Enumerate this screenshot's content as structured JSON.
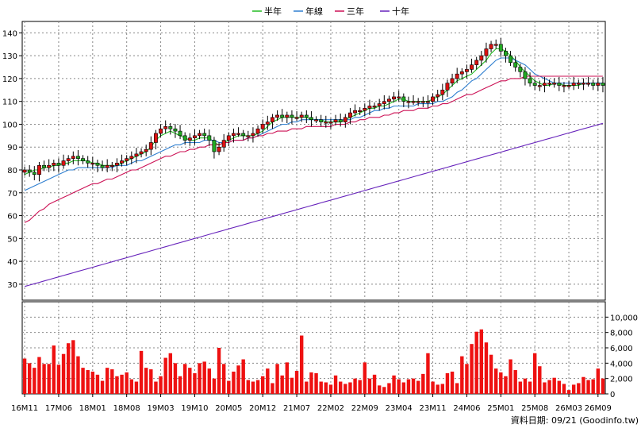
{
  "chart_data": {
    "type": "candlestick",
    "legend": [
      {
        "name": "半年",
        "color": "#22bb22"
      },
      {
        "name": "年線",
        "color": "#2f7fd0"
      },
      {
        "name": "三年",
        "color": "#cc1155"
      },
      {
        "name": "十年",
        "color": "#6622bb"
      }
    ],
    "price_axis": {
      "ticks": [
        "30",
        "40",
        "50",
        "60",
        "70",
        "80",
        "90",
        "100",
        "110",
        "120",
        "130",
        "140"
      ],
      "ylim": [
        23,
        145
      ]
    },
    "volume_axis": {
      "ticks": [
        "0",
        "2,000",
        "4,000",
        "6,000",
        "8,000",
        "10,000"
      ],
      "ylim": [
        0,
        12000
      ]
    },
    "x_ticks": [
      "16M11",
      "17M06",
      "18M01",
      "18M08",
      "19M03",
      "19M10",
      "20M05",
      "20M12",
      "21M07",
      "22M02",
      "22M09",
      "23M04",
      "23M11",
      "24M06",
      "25M01",
      "25M08",
      "26M03",
      "26M09"
    ],
    "x_tick_index": [
      0,
      7,
      14,
      21,
      28,
      35,
      42,
      49,
      56,
      63,
      70,
      77,
      84,
      91,
      98,
      105,
      112,
      118
    ],
    "n_periods": 120,
    "source_label": "資料日期: 09/21 (Goodinfo.tw)",
    "colors": {
      "up": "#dd1111",
      "down": "#22aa22",
      "volume": "#ee1111",
      "grid": "#888888"
    },
    "close": [
      80,
      79,
      78,
      82,
      81,
      82,
      83,
      82,
      84,
      85,
      86,
      85,
      84,
      83,
      83,
      82,
      81,
      82,
      82,
      83,
      84,
      85,
      86,
      87,
      88,
      89,
      92,
      96,
      98,
      99,
      98,
      97,
      95,
      93,
      94,
      95,
      96,
      95,
      93,
      88,
      90,
      93,
      95,
      96,
      96,
      95,
      95,
      96,
      98,
      100,
      101,
      103,
      104,
      103,
      104,
      103,
      103,
      104,
      103,
      102,
      102,
      101,
      101,
      101,
      102,
      101,
      103,
      105,
      106,
      106,
      107,
      108,
      108,
      109,
      110,
      111,
      112,
      112,
      110,
      110,
      110,
      110,
      110,
      110,
      112,
      113,
      115,
      118,
      120,
      122,
      123,
      124,
      126,
      128,
      130,
      133,
      135,
      135,
      132,
      130,
      127,
      125,
      123,
      120,
      118,
      117,
      117,
      118,
      118,
      118,
      117,
      117,
      117,
      118,
      118,
      118,
      118,
      117,
      118,
      117
    ],
    "ma_half": [
      78,
      79,
      80,
      80,
      81,
      81,
      82,
      82,
      83,
      83,
      84,
      84,
      84,
      84,
      83,
      83,
      82,
      82,
      82,
      82,
      83,
      84,
      85,
      86,
      87,
      88,
      90,
      93,
      95,
      96,
      97,
      96,
      95,
      94,
      93,
      93,
      94,
      94,
      94,
      92,
      91,
      92,
      93,
      94,
      95,
      95,
      95,
      95,
      96,
      97,
      99,
      101,
      102,
      103,
      103,
      103,
      103,
      103,
      103,
      102,
      102,
      102,
      101,
      101,
      101,
      101,
      102,
      103,
      104,
      105,
      106,
      107,
      107,
      108,
      108,
      109,
      110,
      111,
      111,
      110,
      110,
      110,
      110,
      110,
      111,
      112,
      113,
      115,
      117,
      119,
      120,
      121,
      122,
      124,
      126,
      128,
      131,
      133,
      133,
      132,
      130,
      128,
      125,
      123,
      121,
      119,
      118,
      117,
      117,
      118,
      118,
      117,
      117,
      117,
      117,
      118,
      118,
      118,
      118,
      118
    ],
    "ma_year": [
      71,
      72,
      73,
      74,
      75,
      76,
      77,
      78,
      79,
      80,
      80,
      81,
      81,
      81,
      81,
      81,
      81,
      81,
      81,
      82,
      82,
      82,
      83,
      84,
      84,
      85,
      86,
      87,
      88,
      89,
      90,
      91,
      91,
      92,
      92,
      92,
      92,
      93,
      93,
      93,
      92,
      92,
      92,
      93,
      93,
      93,
      94,
      94,
      95,
      96,
      97,
      98,
      99,
      100,
      100,
      101,
      101,
      102,
      102,
      102,
      102,
      102,
      102,
      102,
      102,
      102,
      102,
      102,
      103,
      103,
      104,
      105,
      106,
      106,
      107,
      107,
      108,
      108,
      108,
      108,
      108,
      109,
      109,
      109,
      109,
      110,
      110,
      111,
      112,
      114,
      115,
      117,
      119,
      120,
      122,
      124,
      126,
      128,
      129,
      129,
      129,
      128,
      127,
      126,
      124,
      122,
      121,
      120,
      119,
      118,
      118,
      118,
      118,
      118,
      118,
      118,
      118,
      118,
      118,
      118
    ],
    "ma_3y": [
      57,
      58,
      60,
      62,
      63,
      65,
      66,
      67,
      68,
      69,
      70,
      71,
      72,
      73,
      74,
      74,
      75,
      76,
      76,
      77,
      78,
      79,
      80,
      80,
      81,
      82,
      83,
      84,
      85,
      86,
      86,
      87,
      88,
      88,
      89,
      89,
      90,
      90,
      91,
      91,
      91,
      92,
      92,
      93,
      93,
      93,
      94,
      94,
      95,
      95,
      96,
      96,
      97,
      97,
      97,
      98,
      98,
      98,
      99,
      99,
      99,
      99,
      99,
      99,
      100,
      100,
      100,
      101,
      101,
      102,
      102,
      103,
      103,
      103,
      104,
      104,
      105,
      105,
      106,
      106,
      106,
      107,
      107,
      107,
      108,
      108,
      109,
      109,
      110,
      111,
      112,
      113,
      113,
      114,
      115,
      116,
      117,
      118,
      119,
      119,
      120,
      120,
      120,
      121,
      121,
      121,
      121,
      121,
      121,
      121,
      121,
      121,
      121,
      121,
      121,
      121,
      121,
      121,
      121,
      121
    ],
    "ma_10y": [
      29,
      29.6,
      30.2,
      30.8,
      31.4,
      32,
      32.6,
      33.2,
      33.8,
      34.4,
      35,
      35.6,
      36.2,
      36.8,
      37.4,
      38,
      38.6,
      39.2,
      39.8,
      40.4,
      41,
      41.6,
      42.2,
      42.8,
      43.4,
      44,
      44.6,
      45.2,
      45.8,
      46.4,
      47,
      47.6,
      48.2,
      48.8,
      49.4,
      50,
      50.6,
      51.2,
      51.8,
      52.4,
      53,
      53.6,
      54.2,
      54.8,
      55.4,
      56,
      56.6,
      57.2,
      57.8,
      58.4,
      59,
      59.6,
      60.2,
      60.8,
      61.4,
      62,
      62.6,
      63.2,
      63.8,
      64.4,
      65,
      65.6,
      66.2,
      66.8,
      67.4,
      68,
      68.6,
      69.2,
      69.8,
      70.4,
      71,
      71.6,
      72.2,
      72.8,
      73.4,
      74,
      74.6,
      75.2,
      75.8,
      76.4,
      77,
      77.6,
      78.2,
      78.8,
      79.4,
      80,
      80.6,
      81.2,
      81.8,
      82.4,
      83,
      83.6,
      84.2,
      84.8,
      85.4,
      86,
      86.6,
      87.2,
      87.8,
      88.4,
      89,
      89.6,
      90.2,
      90.8,
      91.4,
      92,
      92.6,
      93.2,
      93.8,
      94.4,
      95,
      95.6,
      96.2,
      96.8,
      97.4,
      98,
      98.6,
      99.2,
      99.8,
      100.4
    ],
    "volume": [
      4600,
      4000,
      3400,
      4800,
      3900,
      3900,
      6300,
      3800,
      5200,
      6600,
      7000,
      4900,
      3400,
      3100,
      2900,
      2500,
      1700,
      3400,
      3200,
      2300,
      2500,
      2800,
      1900,
      1600,
      5600,
      3400,
      3200,
      1600,
      2300,
      4700,
      5300,
      4000,
      2300,
      3900,
      3400,
      2700,
      4000,
      4200,
      3300,
      2000,
      6000,
      3900,
      1700,
      2900,
      3700,
      4500,
      1800,
      1600,
      1800,
      2300,
      3300,
      1400,
      3900,
      2400,
      4100,
      2100,
      3000,
      7600,
      1600,
      2800,
      2700,
      1600,
      1500,
      1200,
      2400,
      1600,
      1300,
      1500,
      2000,
      1800,
      4100,
      2000,
      2500,
      1100,
      900,
      1400,
      2400,
      1900,
      1500,
      1900,
      2000,
      1700,
      2600,
      5300,
      1600,
      1200,
      1300,
      2700,
      2900,
      1400,
      4900,
      3900,
      6500,
      8100,
      8400,
      6700,
      5100,
      3300,
      2800,
      2300,
      4500,
      3100,
      1600,
      2000,
      1600,
      5300,
      3600,
      1500,
      1800,
      2100,
      1700,
      1300,
      500,
      1200,
      1400,
      2200,
      1800,
      1900,
      3300,
      2000
    ]
  }
}
